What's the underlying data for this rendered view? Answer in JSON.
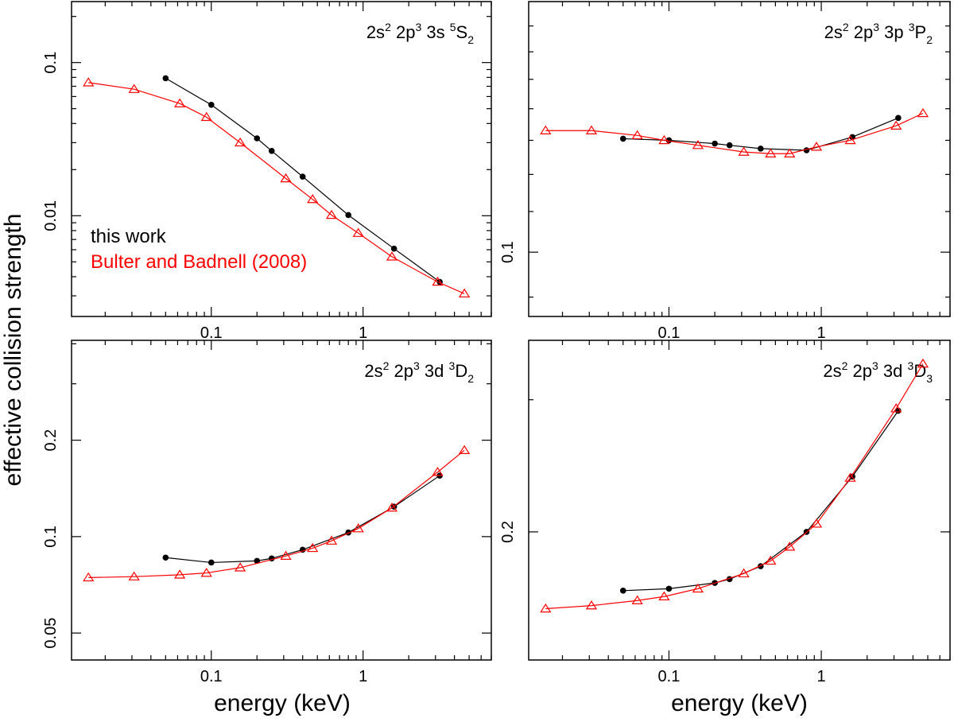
{
  "figure": {
    "ylabel": "effective collision strength",
    "xlabel": "energy (keV)",
    "legend": [
      {
        "label": "this work",
        "color": "#000000",
        "marker": "filled-circle"
      },
      {
        "label": "Bulter and Badnell (2008)",
        "color": "#ff0000",
        "marker": "open-triangle"
      }
    ]
  },
  "chart_data": [
    {
      "type": "line",
      "title": {
        "config": "2s",
        "sup1": "2",
        "mid": " 2p",
        "sup2": "3",
        "tail": " 3s ",
        "term_sup": "5",
        "term": "S",
        "term_sub": "2"
      },
      "xscale": "log",
      "yscale": "log",
      "xlim": [
        0.012,
        7.0
      ],
      "ylim": [
        0.0022,
        0.25
      ],
      "xticks_major": [
        0.1,
        1
      ],
      "xticks_major_labels": [
        "0.1",
        "1"
      ],
      "yticks_major": [
        0.01,
        0.1
      ],
      "yticks_major_labels": [
        "0.01",
        "0.1"
      ],
      "yticks_minor": [
        0.003,
        0.004,
        0.005,
        0.006,
        0.007,
        0.008,
        0.009,
        0.02,
        0.03,
        0.04,
        0.05,
        0.06,
        0.07,
        0.08,
        0.09,
        0.2
      ],
      "series": [
        {
          "name": "this work",
          "x": [
            0.05,
            0.1,
            0.2,
            0.25,
            0.4,
            0.8,
            1.6,
            3.2
          ],
          "y": [
            0.079,
            0.053,
            0.032,
            0.0265,
            0.018,
            0.0101,
            0.0061,
            0.0037
          ]
        },
        {
          "name": "Bulter and Badnell (2008)",
          "x": [
            0.0155,
            0.031,
            0.062,
            0.093,
            0.155,
            0.31,
            0.465,
            0.62,
            0.93,
            1.55,
            3.1,
            4.65
          ],
          "y": [
            0.074,
            0.067,
            0.054,
            0.044,
            0.03,
            0.0175,
            0.0128,
            0.0101,
            0.0077,
            0.0054,
            0.0037,
            0.0031
          ]
        }
      ],
      "legend_position": "lower-left"
    },
    {
      "type": "line",
      "title": {
        "config": "2s",
        "sup1": "2",
        "mid": " 2p",
        "sup2": "3",
        "tail": " 3p ",
        "term_sup": "3",
        "term": "P",
        "term_sub": "2"
      },
      "xscale": "log",
      "yscale": "log",
      "xlim": [
        0.012,
        7.0
      ],
      "ylim": [
        0.086,
        0.18
      ],
      "xticks_major": [
        0.1,
        1
      ],
      "xticks_major_labels": [
        "0.1",
        "1"
      ],
      "yticks_major": [
        0.1
      ],
      "yticks_major_labels": [
        "0.1"
      ],
      "yticks_minor": [
        0.09,
        0.11,
        0.12,
        0.13,
        0.14,
        0.15,
        0.16,
        0.17
      ],
      "series": [
        {
          "name": "this work",
          "x": [
            0.05,
            0.1,
            0.2,
            0.25,
            0.4,
            0.8,
            1.6,
            3.2
          ],
          "y": [
            0.1305,
            0.13,
            0.129,
            0.1285,
            0.1275,
            0.127,
            0.131,
            0.137
          ]
        },
        {
          "name": "Bulter and Badnell (2008)",
          "x": [
            0.0155,
            0.031,
            0.062,
            0.093,
            0.155,
            0.31,
            0.465,
            0.62,
            0.93,
            1.55,
            3.1,
            4.65
          ],
          "y": [
            0.133,
            0.133,
            0.1315,
            0.13,
            0.1285,
            0.1265,
            0.126,
            0.126,
            0.128,
            0.13,
            0.1345,
            0.1385
          ]
        }
      ]
    },
    {
      "type": "line",
      "title": {
        "config": "2s",
        "sup1": "2",
        "mid": " 2p",
        "sup2": "3",
        "tail": " 3d ",
        "term_sup": "3",
        "term": "D",
        "term_sub": "2"
      },
      "xscale": "log",
      "yscale": "log",
      "xlim": [
        0.012,
        7.0
      ],
      "ylim": [
        0.0412,
        0.41
      ],
      "xticks_major": [
        0.1,
        1
      ],
      "xticks_major_labels": [
        "0.1",
        "1"
      ],
      "yticks_major": [
        0.05,
        0.1,
        0.2
      ],
      "yticks_major_labels": [
        "0.05",
        "0.1",
        "0.2"
      ],
      "yticks_minor": [
        0.3,
        0.4
      ],
      "series": [
        {
          "name": "this work",
          "x": [
            0.05,
            0.1,
            0.2,
            0.25,
            0.4,
            0.8,
            1.6,
            3.2
          ],
          "y": [
            0.086,
            0.083,
            0.084,
            0.0855,
            0.091,
            0.103,
            0.124,
            0.155
          ]
        },
        {
          "name": "Bulter and Badnell (2008)",
          "x": [
            0.0155,
            0.031,
            0.062,
            0.093,
            0.155,
            0.31,
            0.465,
            0.62,
            0.93,
            1.55,
            3.1,
            4.65
          ],
          "y": [
            0.0745,
            0.075,
            0.076,
            0.077,
            0.08,
            0.087,
            0.092,
            0.097,
            0.106,
            0.123,
            0.159,
            0.186
          ]
        }
      ]
    },
    {
      "type": "line",
      "title": {
        "config": "2s",
        "sup1": "2",
        "mid": " 2p",
        "sup2": "3",
        "tail": " 3d ",
        "term_sup": "3",
        "term": "D",
        "term_sub": "3"
      },
      "xscale": "log",
      "yscale": "log",
      "xlim": [
        0.012,
        7.0
      ],
      "ylim": [
        0.135,
        0.36
      ],
      "xticks_major": [
        0.1,
        1
      ],
      "xticks_major_labels": [
        "0.1",
        "1"
      ],
      "yticks_major": [
        0.2
      ],
      "yticks_major_labels": [
        "0.2"
      ],
      "yticks_minor": [
        0.3
      ],
      "series": [
        {
          "name": "this work",
          "x": [
            0.05,
            0.1,
            0.2,
            0.25,
            0.4,
            0.8,
            1.6,
            3.2
          ],
          "y": [
            0.167,
            0.168,
            0.171,
            0.173,
            0.18,
            0.2,
            0.237,
            0.29
          ]
        },
        {
          "name": "Bulter and Badnell (2008)",
          "x": [
            0.0155,
            0.031,
            0.062,
            0.093,
            0.155,
            0.31,
            0.465,
            0.62,
            0.93,
            1.55,
            3.1,
            4.65
          ],
          "y": [
            0.158,
            0.1595,
            0.162,
            0.164,
            0.168,
            0.176,
            0.183,
            0.191,
            0.205,
            0.236,
            0.292,
            0.335
          ]
        }
      ]
    }
  ]
}
